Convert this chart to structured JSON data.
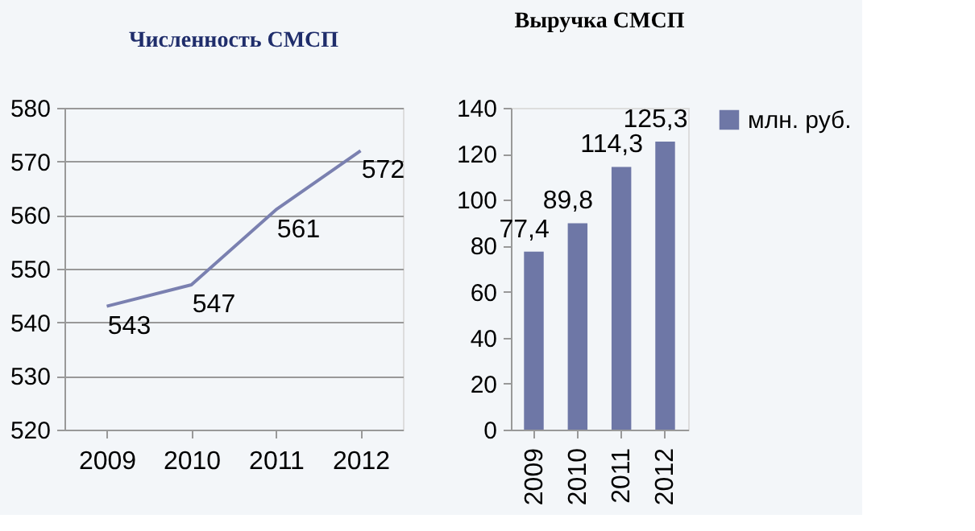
{
  "chart_data": [
    {
      "type": "line",
      "title": "Численность СМСП",
      "categories": [
        "2009",
        "2010",
        "2011",
        "2012"
      ],
      "series": [
        {
          "color": "#7a80b0",
          "values": [
            543,
            547,
            561,
            572
          ]
        }
      ],
      "ylim": [
        520,
        580
      ],
      "yticks": [
        520,
        530,
        540,
        550,
        560,
        570,
        580
      ],
      "grid": "y",
      "data_labels": true
    },
    {
      "type": "bar",
      "title": "Выручка СМСП",
      "categories": [
        "2009",
        "2010",
        "2011",
        "2012"
      ],
      "series": [
        {
          "name": "млн. руб.",
          "color": "#6e77a6",
          "values": [
            77.4,
            89.8,
            114.3,
            125.3
          ],
          "value_labels": [
            "77,4",
            "89,8",
            "114,3",
            "125,3"
          ]
        }
      ],
      "ylim": [
        0,
        140
      ],
      "yticks": [
        0,
        20,
        40,
        60,
        80,
        100,
        120,
        140
      ],
      "grid": false,
      "legend": "right"
    }
  ]
}
